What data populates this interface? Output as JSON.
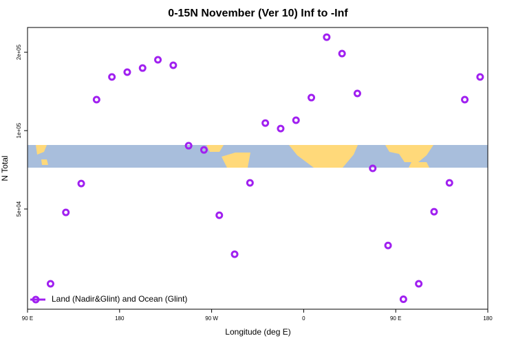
{
  "chart_data": {
    "type": "scatter",
    "title": "0-15N November (Ver 10)   Inf to -Inf",
    "x_label": "Longitude (deg E)",
    "y_label": "N Total",
    "xlim": [
      90,
      540
    ],
    "xticks": [
      {
        "value": 90,
        "label": "90 E"
      },
      {
        "value": 180,
        "label": "180"
      },
      {
        "value": 270,
        "label": "90 W"
      },
      {
        "value": 360,
        "label": "0"
      },
      {
        "value": 450,
        "label": "90 E"
      },
      {
        "value": 540,
        "label": "180"
      }
    ],
    "ylim": [
      20600,
      249000
    ],
    "ylog": true,
    "yticks": [
      {
        "value": 50000,
        "label": "5e+04"
      },
      {
        "value": 100000,
        "label": "1e+05"
      },
      {
        "value": 200000,
        "label": "2e+05"
      }
    ],
    "legend_position": "bottom-left",
    "series": [
      {
        "name": "Land (Nadir&Glint) and Ocean (Glint)",
        "color": "#a020f0",
        "x": [
          112.5,
          127.5,
          142.5,
          157.5,
          172.5,
          187.5,
          202.5,
          217.5,
          232.5,
          247.5,
          262.5,
          277.5,
          292.5,
          307.5,
          322.5,
          337.5,
          352.5,
          367.5,
          382.5,
          397.5,
          412.5,
          427.5,
          442.5,
          457.5,
          472.5,
          487.5,
          502.5,
          517.5,
          532.5
        ],
        "values": [
          25800,
          48500,
          62600,
          131500,
          160700,
          167700,
          173900,
          187100,
          178200,
          87500,
          84300,
          47300,
          33500,
          63000,
          106900,
          101800,
          109600,
          133900,
          228600,
          197600,
          138900,
          71600,
          36200,
          22500,
          25800,
          48800,
          63000,
          131500,
          160700
        ]
      }
    ]
  }
}
